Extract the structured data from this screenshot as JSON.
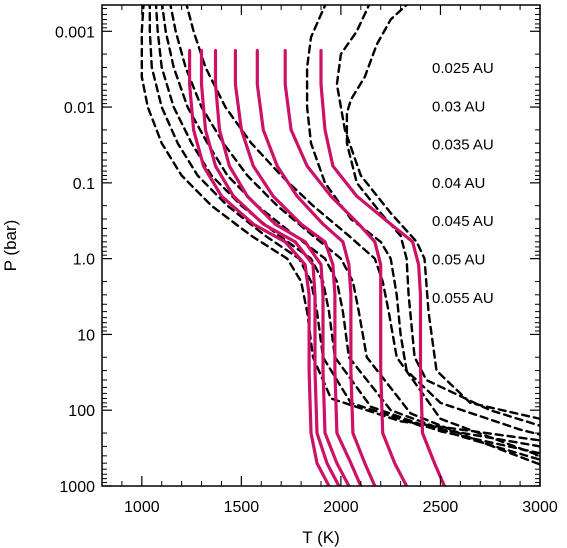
{
  "chart_data": {
    "type": "line",
    "title": "",
    "xlabel": "T (K)",
    "ylabel": "P (bar)",
    "xlim": [
      800,
      3000
    ],
    "ylim": [
      1000,
      0.00045
    ],
    "y_scale": "log",
    "grid": false,
    "x_ticks": [
      1000,
      1500,
      2000,
      2500,
      3000
    ],
    "x_tick_labels": [
      "1000",
      "1500",
      "2000",
      "2500",
      "3000"
    ],
    "y_ticks": [
      0.001,
      0.01,
      0.1,
      1.0,
      10,
      100,
      1000
    ],
    "y_tick_labels": [
      "0.001",
      "0.01",
      "0.1",
      "1.0",
      "10",
      "100",
      "1000"
    ],
    "legend": {
      "placement": "right",
      "entries": [
        "0.025 AU",
        "0.03 AU",
        "0.035 AU",
        "0.04 AU",
        "0.045 AU",
        "0.05 AU",
        "0.055 AU"
      ]
    },
    "series": [
      {
        "style": "dashed",
        "color": "#000000",
        "points": [
          [
            1010,
            0.0004
          ],
          [
            1000,
            0.001
          ],
          [
            1000,
            0.002
          ],
          [
            1000,
            0.004
          ],
          [
            1030,
            0.01
          ],
          [
            1100,
            0.03
          ],
          [
            1200,
            0.08
          ],
          [
            1350,
            0.2
          ],
          [
            1550,
            0.5
          ],
          [
            1730,
            1.0
          ],
          [
            1800,
            2.0
          ],
          [
            1830,
            5
          ],
          [
            1860,
            20
          ],
          [
            1950,
            70
          ],
          [
            2300,
            140
          ],
          [
            3000,
            250
          ]
        ]
      },
      {
        "style": "dashed",
        "color": "#000000",
        "points": [
          [
            1040,
            0.0004
          ],
          [
            1040,
            0.001
          ],
          [
            1050,
            0.003
          ],
          [
            1100,
            0.01
          ],
          [
            1180,
            0.03
          ],
          [
            1280,
            0.08
          ],
          [
            1430,
            0.2
          ],
          [
            1620,
            0.5
          ],
          [
            1790,
            1.0
          ],
          [
            1850,
            2.0
          ],
          [
            1880,
            5
          ],
          [
            1910,
            20
          ],
          [
            2050,
            80
          ],
          [
            2400,
            160
          ],
          [
            3000,
            300
          ]
        ]
      },
      {
        "style": "dashed",
        "color": "#000000",
        "points": [
          [
            1070,
            0.0004
          ],
          [
            1080,
            0.001
          ],
          [
            1100,
            0.003
          ],
          [
            1160,
            0.01
          ],
          [
            1250,
            0.03
          ],
          [
            1350,
            0.08
          ],
          [
            1500,
            0.2
          ],
          [
            1690,
            0.5
          ],
          [
            1850,
            1.0
          ],
          [
            1910,
            2.0
          ],
          [
            1940,
            5
          ],
          [
            1970,
            20
          ],
          [
            2150,
            90
          ],
          [
            2500,
            190
          ],
          [
            3000,
            370
          ]
        ]
      },
      {
        "style": "dashed",
        "color": "#000000",
        "points": [
          [
            1100,
            0.0004
          ],
          [
            1120,
            0.001
          ],
          [
            1160,
            0.003
          ],
          [
            1230,
            0.01
          ],
          [
            1330,
            0.03
          ],
          [
            1430,
            0.08
          ],
          [
            1580,
            0.2
          ],
          [
            1770,
            0.5
          ],
          [
            1920,
            1.0
          ],
          [
            1980,
            2.0
          ],
          [
            2010,
            5
          ],
          [
            2040,
            20
          ],
          [
            2250,
            100
          ],
          [
            2600,
            220
          ],
          [
            3000,
            450
          ]
        ]
      },
      {
        "style": "dashed",
        "color": "#000000",
        "points": [
          [
            1140,
            0.0004
          ],
          [
            1170,
            0.001
          ],
          [
            1220,
            0.003
          ],
          [
            1300,
            0.01
          ],
          [
            1410,
            0.03
          ],
          [
            1530,
            0.08
          ],
          [
            1680,
            0.2
          ],
          [
            1860,
            0.5
          ],
          [
            2000,
            1.0
          ],
          [
            2060,
            2.0
          ],
          [
            2090,
            5
          ],
          [
            2130,
            20
          ],
          [
            2350,
            110
          ],
          [
            2700,
            260
          ],
          [
            3000,
            520
          ]
        ]
      },
      {
        "style": "dashed",
        "color": "#000000",
        "points": [
          [
            1220,
            0.0004
          ],
          [
            1260,
            0.001
          ],
          [
            1320,
            0.003
          ],
          [
            1420,
            0.01
          ],
          [
            1550,
            0.03
          ],
          [
            1700,
            0.08
          ],
          [
            1860,
            0.2
          ],
          [
            2040,
            0.5
          ],
          [
            2170,
            1.0
          ],
          [
            2210,
            2.0
          ],
          [
            2240,
            5
          ],
          [
            2280,
            20
          ],
          [
            2500,
            130
          ],
          [
            3000,
            400
          ]
        ]
      },
      {
        "style": "dashed",
        "color": "#000000",
        "points": [
          [
            1930,
            0.0004
          ],
          [
            1900,
            0.0006
          ],
          [
            1850,
            0.0012
          ],
          [
            1830,
            0.003
          ],
          [
            1830,
            0.01
          ],
          [
            1850,
            0.03
          ],
          [
            1920,
            0.1
          ],
          [
            2050,
            0.3
          ],
          [
            2200,
            0.6
          ],
          [
            2250,
            1.0
          ],
          [
            2280,
            3
          ],
          [
            2300,
            10
          ],
          [
            2330,
            30
          ],
          [
            2500,
            80
          ],
          [
            2900,
            180
          ],
          [
            3000,
            210
          ]
        ]
      },
      {
        "style": "dashed",
        "color": "#000000",
        "points": [
          [
            2150,
            0.0004
          ],
          [
            2080,
            0.001
          ],
          [
            2000,
            0.002
          ],
          [
            1980,
            0.005
          ],
          [
            2020,
            0.02
          ],
          [
            2100,
            0.08
          ],
          [
            2250,
            0.25
          ],
          [
            2380,
            0.6
          ],
          [
            2420,
            1.0
          ],
          [
            2440,
            5
          ],
          [
            2480,
            30
          ],
          [
            2650,
            80
          ],
          [
            3000,
            130
          ]
        ]
      },
      {
        "style": "dashed",
        "color": "#000000",
        "points": [
          [
            2350,
            0.0004
          ],
          [
            2310,
            0.0005
          ],
          [
            2250,
            0.0007
          ],
          [
            2180,
            0.0015
          ],
          [
            2120,
            0.004
          ],
          [
            2050,
            0.008
          ],
          [
            2030,
            0.012
          ],
          [
            2030,
            0.03
          ],
          [
            2080,
            0.1
          ],
          [
            2200,
            0.25
          ],
          [
            2300,
            0.5
          ],
          [
            2330,
            1.0
          ],
          [
            2340,
            3
          ],
          [
            2370,
            20
          ],
          [
            2430,
            40
          ],
          [
            2750,
            100
          ],
          [
            3000,
            160
          ]
        ]
      },
      {
        "style": "solid",
        "color": "#cc1166",
        "points": [
          [
            1240,
            0.0018
          ],
          [
            1240,
            0.005
          ],
          [
            1260,
            0.02
          ],
          [
            1310,
            0.06
          ],
          [
            1400,
            0.15
          ],
          [
            1560,
            0.35
          ],
          [
            1720,
            0.6
          ],
          [
            1820,
            1.2
          ],
          [
            1840,
            3
          ],
          [
            1840,
            30
          ],
          [
            1850,
            200
          ],
          [
            1880,
            500
          ],
          [
            1940,
            1000
          ]
        ]
      },
      {
        "style": "solid",
        "color": "#cc1166",
        "points": [
          [
            1300,
            0.0018
          ],
          [
            1300,
            0.005
          ],
          [
            1320,
            0.02
          ],
          [
            1370,
            0.06
          ],
          [
            1460,
            0.15
          ],
          [
            1610,
            0.35
          ],
          [
            1770,
            0.6
          ],
          [
            1860,
            1.2
          ],
          [
            1870,
            3
          ],
          [
            1870,
            30
          ],
          [
            1880,
            200
          ],
          [
            1930,
            500
          ],
          [
            1990,
            1000
          ]
        ]
      },
      {
        "style": "solid",
        "color": "#cc1166",
        "points": [
          [
            1370,
            0.0018
          ],
          [
            1370,
            0.005
          ],
          [
            1390,
            0.02
          ],
          [
            1440,
            0.06
          ],
          [
            1530,
            0.15
          ],
          [
            1670,
            0.35
          ],
          [
            1820,
            0.6
          ],
          [
            1900,
            1.2
          ],
          [
            1910,
            3
          ],
          [
            1910,
            30
          ],
          [
            1920,
            200
          ],
          [
            1980,
            500
          ],
          [
            2040,
            1000
          ]
        ]
      },
      {
        "style": "solid",
        "color": "#cc1166",
        "points": [
          [
            1470,
            0.0018
          ],
          [
            1470,
            0.005
          ],
          [
            1500,
            0.02
          ],
          [
            1560,
            0.06
          ],
          [
            1660,
            0.15
          ],
          [
            1800,
            0.35
          ],
          [
            1920,
            0.6
          ],
          [
            1960,
            1.2
          ],
          [
            1970,
            3
          ],
          [
            1970,
            30
          ],
          [
            1980,
            200
          ],
          [
            2050,
            500
          ],
          [
            2100,
            1000
          ]
        ]
      },
      {
        "style": "solid",
        "color": "#cc1166",
        "points": [
          [
            1580,
            0.0018
          ],
          [
            1580,
            0.005
          ],
          [
            1610,
            0.02
          ],
          [
            1680,
            0.06
          ],
          [
            1780,
            0.15
          ],
          [
            1910,
            0.35
          ],
          [
            2010,
            0.6
          ],
          [
            2040,
            1.2
          ],
          [
            2050,
            3
          ],
          [
            2050,
            30
          ],
          [
            2060,
            200
          ],
          [
            2120,
            500
          ],
          [
            2170,
            1000
          ]
        ]
      },
      {
        "style": "solid",
        "color": "#cc1166",
        "points": [
          [
            1720,
            0.0018
          ],
          [
            1720,
            0.005
          ],
          [
            1750,
            0.02
          ],
          [
            1830,
            0.06
          ],
          [
            1950,
            0.15
          ],
          [
            2090,
            0.35
          ],
          [
            2170,
            0.6
          ],
          [
            2200,
            1.2
          ],
          [
            2200,
            3
          ],
          [
            2200,
            30
          ],
          [
            2210,
            200
          ],
          [
            2270,
            500
          ],
          [
            2330,
            1000
          ]
        ]
      },
      {
        "style": "solid",
        "color": "#cc1166",
        "points": [
          [
            1900,
            0.0018
          ],
          [
            1900,
            0.005
          ],
          [
            1920,
            0.02
          ],
          [
            1960,
            0.06
          ],
          [
            2080,
            0.15
          ],
          [
            2250,
            0.35
          ],
          [
            2360,
            0.6
          ],
          [
            2390,
            1.2
          ],
          [
            2400,
            3
          ],
          [
            2400,
            30
          ],
          [
            2410,
            200
          ],
          [
            2470,
            500
          ],
          [
            2520,
            1000
          ]
        ]
      }
    ]
  }
}
